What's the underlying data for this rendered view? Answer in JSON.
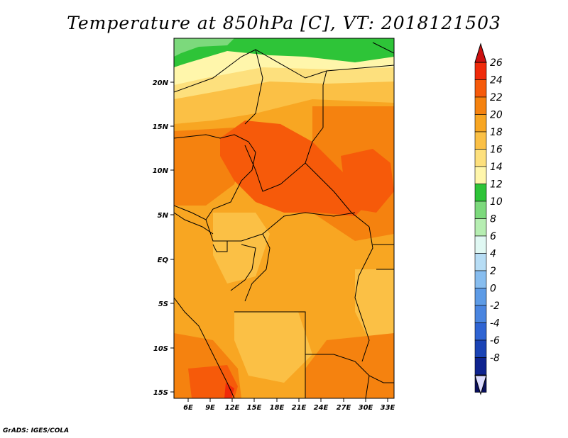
{
  "title": "Temperature at 850hPa [C], VT: 2018121503",
  "credit": "GrADS: IGES/COLA",
  "lat_labels": [
    "20N",
    "15N",
    "10N",
    "5N",
    "EQ",
    "5S",
    "10S",
    "15S"
  ],
  "lon_labels": [
    "6E",
    "9E",
    "12E",
    "15E",
    "18E",
    "21E",
    "24E",
    "27E",
    "30E",
    "33E"
  ],
  "colorbar": {
    "labels": [
      "26",
      "24",
      "22",
      "20",
      "18",
      "16",
      "14",
      "12",
      "10",
      "8",
      "6",
      "4",
      "2",
      "0",
      "-2",
      "-4",
      "-6",
      "-8"
    ],
    "colors": [
      "#f02a0a",
      "#f65a0a",
      "#f5820f",
      "#f8a622",
      "#fbc045",
      "#fde07d",
      "#fff6ab",
      "#2ec438",
      "#7cd97c",
      "#b6eeb2",
      "#e0f8f3",
      "#b7ddf5",
      "#87bdef",
      "#5d9be6",
      "#4a85e0",
      "#2f64d3",
      "#1a43b5",
      "#0e238f",
      "#090f5c"
    ],
    "top_arrow_color": "#cc1010",
    "bottom_arrow_color": "#dcdcff"
  }
}
